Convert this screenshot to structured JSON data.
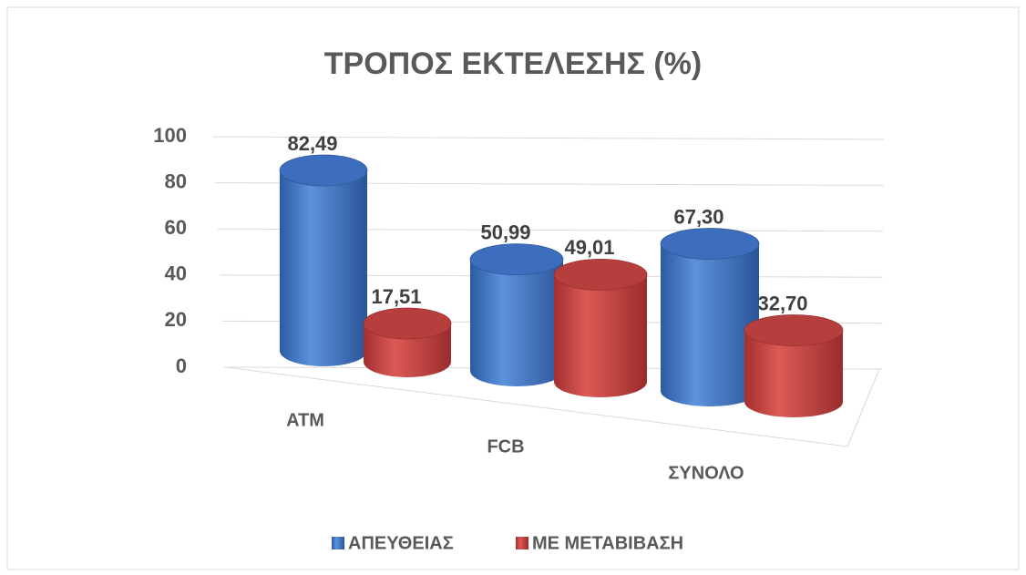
{
  "chart_data": {
    "type": "bar3d",
    "title": "ΤΡΟΠΟΣ ΕΚΤΕΛΕΣΗΣ (%)",
    "categories": [
      "ATM",
      "FCB",
      "ΣΥΝΟΛΟ"
    ],
    "series": [
      {
        "name": "ΑΠΕΥΘΕΙΑΣ",
        "color": "#4472c4",
        "values": [
          82.49,
          50.99,
          67.3
        ],
        "value_labels": [
          "82,49",
          "50,99",
          "67,30"
        ]
      },
      {
        "name": "ΜΕ ΜΕΤΑΒΙΒΑΣΗ",
        "color": "#c0504d",
        "values": [
          17.51,
          49.01,
          32.7
        ],
        "value_labels": [
          "17,51",
          "49,01",
          "32,70"
        ]
      }
    ],
    "ylim": [
      0,
      100
    ],
    "yticks": [
      0,
      20,
      40,
      60,
      80,
      100
    ],
    "grid": true,
    "legend": "bottom"
  }
}
